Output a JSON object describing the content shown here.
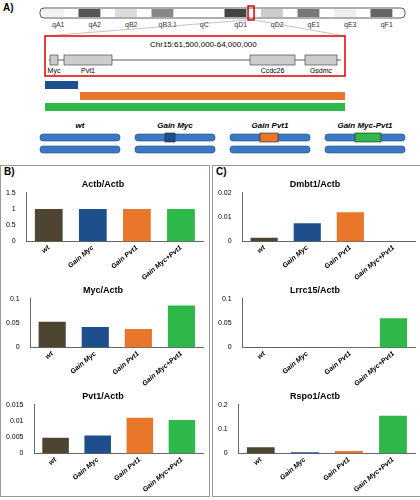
{
  "panel_labels": [
    "A)",
    "B)",
    "C)"
  ],
  "diagram": {
    "ideogram": {
      "bands": [
        "qA1",
        "qA2",
        "qB2",
        "qB3.1",
        "qC",
        "qD1",
        "qD2",
        "qE1",
        "qE3",
        "qF1"
      ]
    },
    "region": {
      "label": "Chr15:61,500,000-64,000,000",
      "genes": [
        "Myc",
        "Pvt1",
        "Ccdc26",
        "Gsdmc"
      ]
    },
    "genotypes": [
      "wt",
      "Gain Myc",
      "Gain Pvt1",
      "Gain Myc-Pvt1"
    ]
  },
  "chart_data": [
    {
      "type": "bar",
      "panel": "B)",
      "title": "Actb/Actb",
      "categories": [
        "wt",
        "Gain Myc",
        "Gain Pvt1",
        "Gain Myc+Pvt1"
      ],
      "values": [
        1,
        1,
        1,
        1
      ],
      "colors": [
        "#4d4431",
        "#1f4e8c",
        "#e8762b",
        "#2eb84a"
      ],
      "ylim": [
        0,
        1.5
      ],
      "yticks": [
        0,
        0.5,
        1,
        1.5
      ],
      "grid": false
    },
    {
      "type": "bar",
      "panel": "B)",
      "title": "Myc/Actb",
      "categories": [
        "wt",
        "Gain Myc",
        "Gain Pvt1",
        "Gain Myc+Pvt1"
      ],
      "values": [
        0.053,
        0.042,
        0.038,
        0.086
      ],
      "colors": [
        "#4d4431",
        "#1f4e8c",
        "#e8762b",
        "#2eb84a"
      ],
      "ylim": [
        0,
        0.1
      ],
      "yticks": [
        0,
        0.05,
        0.1
      ],
      "grid": false
    },
    {
      "type": "bar",
      "panel": "B)",
      "title": "Pvt1/Actb",
      "categories": [
        "wt",
        "Gain Myc",
        "Gain Pvt1",
        "Gain Myc+Pvt1"
      ],
      "values": [
        0.0048,
        0.0055,
        0.011,
        0.0103
      ],
      "colors": [
        "#4d4431",
        "#1f4e8c",
        "#e8762b",
        "#2eb84a"
      ],
      "ylim": [
        0,
        0.015
      ],
      "yticks": [
        0,
        0.005,
        0.01,
        0.015
      ],
      "grid": false
    },
    {
      "type": "bar",
      "panel": "C)",
      "title": "Dmbt1/Actb",
      "categories": [
        "wt",
        "Gain Myc",
        "Gain Pvt1",
        "Gain Myc+Pvt1"
      ],
      "values": [
        0.0015,
        0.0075,
        0.012,
        0
      ],
      "colors": [
        "#4d4431",
        "#1f4e8c",
        "#e8762b",
        "#2eb84a"
      ],
      "ylim": [
        0,
        0.02
      ],
      "yticks": [
        0,
        0.01,
        0.02
      ],
      "grid": false
    },
    {
      "type": "bar",
      "panel": "C)",
      "title": "Lrrc15/Actb",
      "categories": [
        "wt",
        "Gain Myc",
        "Gain Pvt1",
        "Gain Myc+Pvt1"
      ],
      "values": [
        0.0005,
        0.0005,
        0.001,
        0.06
      ],
      "colors": [
        "#4d4431",
        "#1f4e8c",
        "#e8762b",
        "#2eb84a"
      ],
      "ylim": [
        0,
        0.1
      ],
      "yticks": [
        0,
        0.05,
        0.1
      ],
      "grid": false
    },
    {
      "type": "bar",
      "panel": "C)",
      "title": "Rspo1/Actb",
      "categories": [
        "wt",
        "Gain Myc",
        "Gain Pvt1",
        "Gain Myc+Pvt1"
      ],
      "values": [
        0.025,
        0.005,
        0.01,
        0.155
      ],
      "colors": [
        "#4d4431",
        "#1f4e8c",
        "#e8762b",
        "#2eb84a"
      ],
      "ylim": [
        0,
        0.2
      ],
      "yticks": [
        0,
        0.1,
        0.2
      ],
      "grid": false
    }
  ]
}
